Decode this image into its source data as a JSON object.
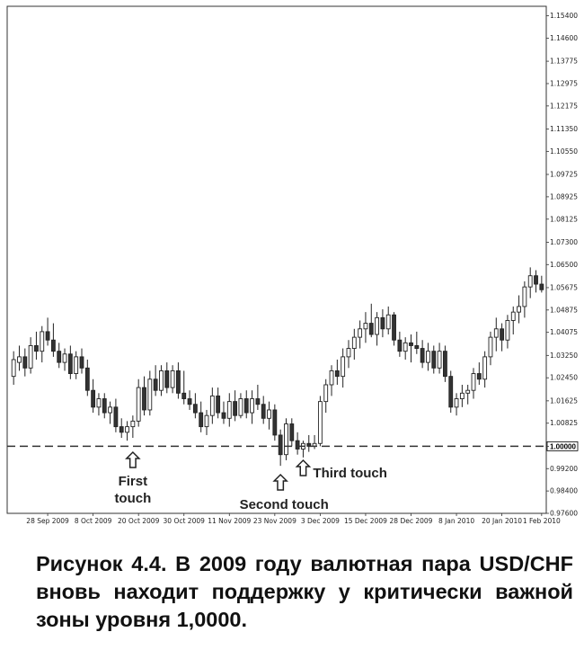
{
  "chart_data": {
    "type": "candlestick",
    "pair": "USD/CHF",
    "ylim": [
      0.976,
      1.1574
    ],
    "y_ticks": [
      "1.15400",
      "1.14600",
      "1.13775",
      "1.12975",
      "1.12175",
      "1.11350",
      "1.10550",
      "1.09725",
      "1.08925",
      "1.08125",
      "1.07300",
      "1.06500",
      "1.05675",
      "1.04875",
      "1.04075",
      "1.03250",
      "1.02450",
      "1.01625",
      "1.00825",
      "1.00000",
      "0.99200",
      "0.98400",
      "0.97600"
    ],
    "x_ticks": [
      {
        "label": "28 Sep 2009",
        "index": 6
      },
      {
        "label": "8 Oct 2009",
        "index": 14
      },
      {
        "label": "20 Oct 2009",
        "index": 22
      },
      {
        "label": "30 Oct 2009",
        "index": 30
      },
      {
        "label": "11 Nov 2009",
        "index": 38
      },
      {
        "label": "23 Nov 2009",
        "index": 46
      },
      {
        "label": "3 Dec 2009",
        "index": 54
      },
      {
        "label": "15 Dec 2009",
        "index": 62
      },
      {
        "label": "28 Dec 2009",
        "index": 70
      },
      {
        "label": "8 Jan 2010",
        "index": 78
      },
      {
        "label": "20 Jan 2010",
        "index": 86
      },
      {
        "label": "1 Feb 2010",
        "index": 93
      }
    ],
    "support_level": 1.0,
    "support_label": "1.00000",
    "candles": [
      {
        "o": 1.025,
        "h": 1.034,
        "l": 1.022,
        "c": 1.031
      },
      {
        "o": 1.03,
        "h": 1.036,
        "l": 1.027,
        "c": 1.032
      },
      {
        "o": 1.032,
        "h": 1.035,
        "l": 1.025,
        "c": 1.028
      },
      {
        "o": 1.028,
        "h": 1.039,
        "l": 1.026,
        "c": 1.036
      },
      {
        "o": 1.036,
        "h": 1.041,
        "l": 1.031,
        "c": 1.034
      },
      {
        "o": 1.034,
        "h": 1.043,
        "l": 1.03,
        "c": 1.041
      },
      {
        "o": 1.041,
        "h": 1.046,
        "l": 1.036,
        "c": 1.038
      },
      {
        "o": 1.038,
        "h": 1.044,
        "l": 1.032,
        "c": 1.034
      },
      {
        "o": 1.034,
        "h": 1.037,
        "l": 1.028,
        "c": 1.03
      },
      {
        "o": 1.03,
        "h": 1.035,
        "l": 1.027,
        "c": 1.033
      },
      {
        "o": 1.033,
        "h": 1.036,
        "l": 1.024,
        "c": 1.026
      },
      {
        "o": 1.026,
        "h": 1.034,
        "l": 1.024,
        "c": 1.032
      },
      {
        "o": 1.032,
        "h": 1.035,
        "l": 1.026,
        "c": 1.028
      },
      {
        "o": 1.028,
        "h": 1.031,
        "l": 1.018,
        "c": 1.02
      },
      {
        "o": 1.02,
        "h": 1.024,
        "l": 1.012,
        "c": 1.014
      },
      {
        "o": 1.014,
        "h": 1.019,
        "l": 1.011,
        "c": 1.017
      },
      {
        "o": 1.017,
        "h": 1.019,
        "l": 1.01,
        "c": 1.012
      },
      {
        "o": 1.012,
        "h": 1.016,
        "l": 1.008,
        "c": 1.014
      },
      {
        "o": 1.014,
        "h": 1.017,
        "l": 1.005,
        "c": 1.007
      },
      {
        "o": 1.007,
        "h": 1.01,
        "l": 1.003,
        "c": 1.005
      },
      {
        "o": 1.005,
        "h": 1.009,
        "l": 1.002,
        "c": 1.007
      },
      {
        "o": 1.007,
        "h": 1.011,
        "l": 1.003,
        "c": 1.009
      },
      {
        "o": 1.009,
        "h": 1.024,
        "l": 1.007,
        "c": 1.021
      },
      {
        "o": 1.021,
        "h": 1.025,
        "l": 1.011,
        "c": 1.013
      },
      {
        "o": 1.013,
        "h": 1.027,
        "l": 1.011,
        "c": 1.024
      },
      {
        "o": 1.024,
        "h": 1.029,
        "l": 1.018,
        "c": 1.02
      },
      {
        "o": 1.02,
        "h": 1.029,
        "l": 1.018,
        "c": 1.027
      },
      {
        "o": 1.027,
        "h": 1.03,
        "l": 1.019,
        "c": 1.021
      },
      {
        "o": 1.021,
        "h": 1.029,
        "l": 1.019,
        "c": 1.027
      },
      {
        "o": 1.027,
        "h": 1.03,
        "l": 1.017,
        "c": 1.019
      },
      {
        "o": 1.019,
        "h": 1.027,
        "l": 1.015,
        "c": 1.017
      },
      {
        "o": 1.017,
        "h": 1.02,
        "l": 1.013,
        "c": 1.015
      },
      {
        "o": 1.015,
        "h": 1.019,
        "l": 1.01,
        "c": 1.012
      },
      {
        "o": 1.012,
        "h": 1.016,
        "l": 1.005,
        "c": 1.007
      },
      {
        "o": 1.007,
        "h": 1.013,
        "l": 1.004,
        "c": 1.011
      },
      {
        "o": 1.011,
        "h": 1.021,
        "l": 1.008,
        "c": 1.018
      },
      {
        "o": 1.018,
        "h": 1.021,
        "l": 1.01,
        "c": 1.012
      },
      {
        "o": 1.012,
        "h": 1.016,
        "l": 1.008,
        "c": 1.01
      },
      {
        "o": 1.01,
        "h": 1.019,
        "l": 1.007,
        "c": 1.016
      },
      {
        "o": 1.016,
        "h": 1.02,
        "l": 1.009,
        "c": 1.011
      },
      {
        "o": 1.011,
        "h": 1.019,
        "l": 1.01,
        "c": 1.017
      },
      {
        "o": 1.017,
        "h": 1.02,
        "l": 1.01,
        "c": 1.012
      },
      {
        "o": 1.012,
        "h": 1.02,
        "l": 1.008,
        "c": 1.017
      },
      {
        "o": 1.017,
        "h": 1.022,
        "l": 1.013,
        "c": 1.015
      },
      {
        "o": 1.015,
        "h": 1.018,
        "l": 1.008,
        "c": 1.01
      },
      {
        "o": 1.01,
        "h": 1.016,
        "l": 1.006,
        "c": 1.013
      },
      {
        "o": 1.013,
        "h": 1.015,
        "l": 1.002,
        "c": 1.004
      },
      {
        "o": 1.004,
        "h": 1.006,
        "l": 0.993,
        "c": 0.997
      },
      {
        "o": 0.997,
        "h": 1.01,
        "l": 0.995,
        "c": 1.008
      },
      {
        "o": 1.008,
        "h": 1.01,
        "l": 1.0,
        "c": 1.002
      },
      {
        "o": 1.002,
        "h": 1.005,
        "l": 0.997,
        "c": 0.999
      },
      {
        "o": 0.999,
        "h": 1.002,
        "l": 0.996,
        "c": 1.001
      },
      {
        "o": 1.001,
        "h": 1.004,
        "l": 0.998,
        "c": 1.0
      },
      {
        "o": 1.0,
        "h": 1.004,
        "l": 0.999,
        "c": 1.001
      },
      {
        "o": 1.001,
        "h": 1.018,
        "l": 1.0,
        "c": 1.016
      },
      {
        "o": 1.016,
        "h": 1.024,
        "l": 1.012,
        "c": 1.022
      },
      {
        "o": 1.022,
        "h": 1.029,
        "l": 1.018,
        "c": 1.027
      },
      {
        "o": 1.027,
        "h": 1.031,
        "l": 1.022,
        "c": 1.025
      },
      {
        "o": 1.025,
        "h": 1.035,
        "l": 1.021,
        "c": 1.032
      },
      {
        "o": 1.032,
        "h": 1.038,
        "l": 1.028,
        "c": 1.035
      },
      {
        "o": 1.035,
        "h": 1.042,
        "l": 1.031,
        "c": 1.039
      },
      {
        "o": 1.039,
        "h": 1.045,
        "l": 1.035,
        "c": 1.042
      },
      {
        "o": 1.042,
        "h": 1.048,
        "l": 1.037,
        "c": 1.044
      },
      {
        "o": 1.044,
        "h": 1.051,
        "l": 1.039,
        "c": 1.04
      },
      {
        "o": 1.04,
        "h": 1.048,
        "l": 1.036,
        "c": 1.046
      },
      {
        "o": 1.046,
        "h": 1.049,
        "l": 1.039,
        "c": 1.042
      },
      {
        "o": 1.042,
        "h": 1.05,
        "l": 1.04,
        "c": 1.047
      },
      {
        "o": 1.047,
        "h": 1.048,
        "l": 1.036,
        "c": 1.038
      },
      {
        "o": 1.038,
        "h": 1.041,
        "l": 1.032,
        "c": 1.034
      },
      {
        "o": 1.034,
        "h": 1.039,
        "l": 1.031,
        "c": 1.037
      },
      {
        "o": 1.037,
        "h": 1.04,
        "l": 1.03,
        "c": 1.036
      },
      {
        "o": 1.036,
        "h": 1.041,
        "l": 1.033,
        "c": 1.035
      },
      {
        "o": 1.035,
        "h": 1.038,
        "l": 1.028,
        "c": 1.03
      },
      {
        "o": 1.03,
        "h": 1.037,
        "l": 1.027,
        "c": 1.034
      },
      {
        "o": 1.034,
        "h": 1.036,
        "l": 1.026,
        "c": 1.028
      },
      {
        "o": 1.028,
        "h": 1.037,
        "l": 1.026,
        "c": 1.034
      },
      {
        "o": 1.034,
        "h": 1.036,
        "l": 1.023,
        "c": 1.025
      },
      {
        "o": 1.025,
        "h": 1.027,
        "l": 1.012,
        "c": 1.014
      },
      {
        "o": 1.014,
        "h": 1.019,
        "l": 1.011,
        "c": 1.017
      },
      {
        "o": 1.017,
        "h": 1.022,
        "l": 1.014,
        "c": 1.019
      },
      {
        "o": 1.019,
        "h": 1.022,
        "l": 1.015,
        "c": 1.02
      },
      {
        "o": 1.02,
        "h": 1.028,
        "l": 1.017,
        "c": 1.026
      },
      {
        "o": 1.026,
        "h": 1.03,
        "l": 1.022,
        "c": 1.024
      },
      {
        "o": 1.024,
        "h": 1.034,
        "l": 1.021,
        "c": 1.032
      },
      {
        "o": 1.032,
        "h": 1.041,
        "l": 1.029,
        "c": 1.039
      },
      {
        "o": 1.039,
        "h": 1.046,
        "l": 1.034,
        "c": 1.042
      },
      {
        "o": 1.042,
        "h": 1.044,
        "l": 1.034,
        "c": 1.038
      },
      {
        "o": 1.038,
        "h": 1.047,
        "l": 1.035,
        "c": 1.045
      },
      {
        "o": 1.045,
        "h": 1.05,
        "l": 1.04,
        "c": 1.048
      },
      {
        "o": 1.048,
        "h": 1.054,
        "l": 1.044,
        "c": 1.05
      },
      {
        "o": 1.05,
        "h": 1.059,
        "l": 1.046,
        "c": 1.057
      },
      {
        "o": 1.057,
        "h": 1.064,
        "l": 1.053,
        "c": 1.061
      },
      {
        "o": 1.061,
        "h": 1.063,
        "l": 1.055,
        "c": 1.058
      },
      {
        "o": 1.058,
        "h": 1.061,
        "l": 1.055,
        "c": 1.056
      }
    ],
    "annotations": [
      {
        "id": "first",
        "lines": [
          "First",
          "touch"
        ],
        "index": 21
      },
      {
        "id": "second",
        "lines": [
          "Second touch"
        ],
        "index": 47
      },
      {
        "id": "third",
        "lines": [
          "Third touch"
        ],
        "index": 51
      }
    ]
  },
  "caption": "Рисунок 4.4. В 2009 году валютная пара USD/CHF вновь находит поддержку у критически важной зоны уровня 1,0000."
}
